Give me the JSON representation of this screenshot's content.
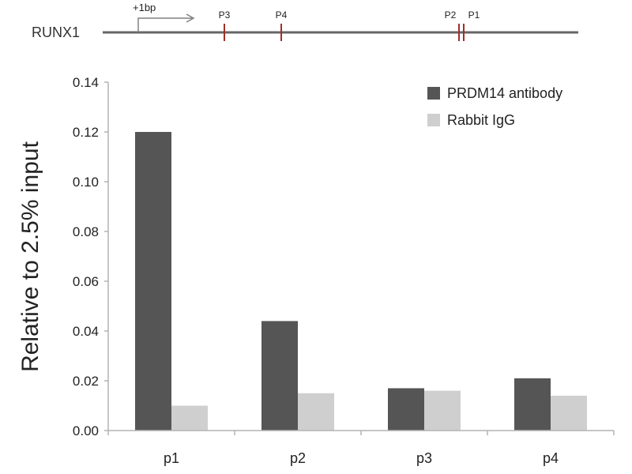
{
  "gene_map": {
    "gene_label": "RUNX1",
    "tss_label": "+1bp",
    "primers": [
      {
        "label": "P3"
      },
      {
        "label": "P4"
      },
      {
        "label": "P2"
      },
      {
        "label": "P1"
      }
    ],
    "colors": {
      "line": "#666666",
      "primer": "#a0302a",
      "arrow": "#808080"
    }
  },
  "chart_data": {
    "type": "bar",
    "categories": [
      "p1",
      "p2",
      "p3",
      "p4"
    ],
    "series": [
      {
        "name": "PRDM14 antibody",
        "color": "#555555",
        "values": [
          0.12,
          0.044,
          0.017,
          0.021
        ]
      },
      {
        "name": "Rabbit IgG",
        "color": "#cfcfcf",
        "values": [
          0.01,
          0.015,
          0.016,
          0.014
        ]
      }
    ],
    "ylabel": "Relative to 2.5% input",
    "xlabel": "",
    "ylim": [
      0,
      0.14
    ],
    "yticks": [
      "0.00",
      "0.02",
      "0.04",
      "0.06",
      "0.08",
      "0.10",
      "0.12",
      "0.14"
    ],
    "legend_position": "top-right",
    "grid": false
  }
}
